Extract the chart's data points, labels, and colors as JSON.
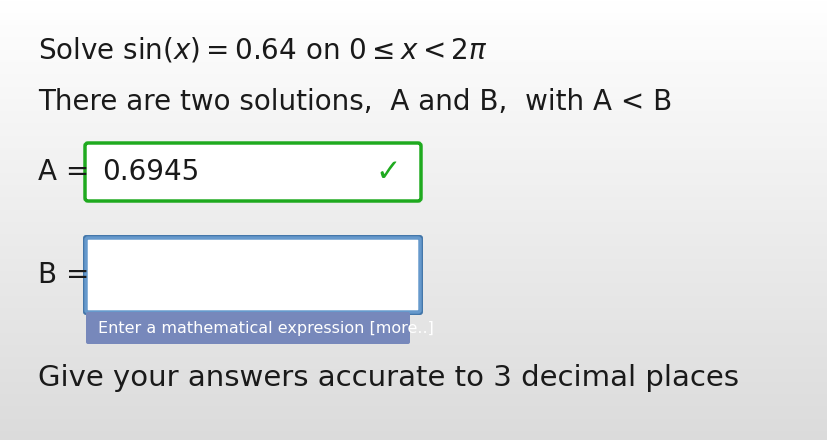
{
  "line1": "Solve $\\sin(x) = 0.64$ on $0 \\leq x < 2\\pi$",
  "line2": "There are two solutions,  A and B,  with A < B",
  "label_A": "A =",
  "value_A": "0.6945",
  "label_B": "B =",
  "hint_text": "Enter a mathematical expression [more..]",
  "footer": "Give your answers accurate to 3 decimal places",
  "box_A_border_color": "#1faa1f",
  "box_B_border_color": "#6699cc",
  "box_B_border_outer": "#4477aa",
  "hint_bg_color": "#7788bb",
  "hint_text_color": "#ffffff",
  "checkmark_color": "#1faa1f",
  "text_color": "#1a1a1a",
  "box_fill_color": "#ffffff",
  "bg_top": "#f5f5f5",
  "bg_bottom": "#d8d8d8"
}
